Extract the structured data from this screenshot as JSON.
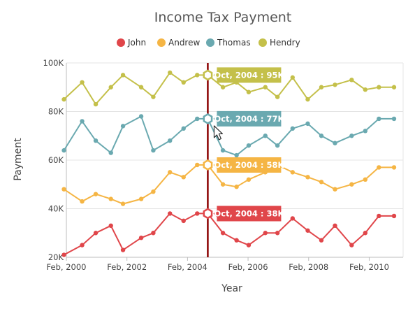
{
  "chart_data": {
    "type": "line",
    "title": "Income Tax Payment",
    "xlabel": "Year",
    "ylabel": "Payment",
    "ylim": [
      20,
      100
    ],
    "y_ticks": [
      "20K",
      "40K",
      "60K",
      "80K",
      "100K"
    ],
    "y_tick_values": [
      20,
      40,
      60,
      80,
      100
    ],
    "x_ticks": [
      "Feb, 2000",
      "Feb, 2002",
      "Feb, 2004",
      "Feb, 2006",
      "Feb, 2008",
      "Feb, 2010"
    ],
    "x_tick_values": [
      2000.08,
      2002.08,
      2004.08,
      2006.08,
      2008.08,
      2010.08
    ],
    "xlim": [
      2000.08,
      2011.2
    ],
    "grid": "horizontal",
    "legend_position": "top",
    "series": [
      {
        "name": "John",
        "color": "#e0464a",
        "x": [
          2000.0,
          2000.6,
          2001.05,
          2001.55,
          2001.95,
          2002.55,
          2002.95,
          2003.5,
          2003.95,
          2004.4,
          2004.75,
          2005.25,
          2005.7,
          2006.1,
          2006.65,
          2007.05,
          2007.55,
          2008.05,
          2008.5,
          2008.95,
          2009.5,
          2009.95,
          2010.4,
          2010.9
        ],
        "values": [
          21,
          25,
          30,
          33,
          23,
          28,
          30,
          38,
          35,
          38,
          38,
          30,
          27,
          25,
          30,
          30,
          36,
          31,
          27,
          33,
          25,
          30,
          37,
          37
        ],
        "skip_marker": [
          false,
          false,
          false,
          false,
          false,
          false,
          false,
          false,
          false,
          false,
          true,
          false,
          false,
          false,
          false,
          false,
          false,
          false,
          false,
          false,
          false,
          false,
          false,
          false
        ]
      },
      {
        "name": "Andrew",
        "color": "#f5b544",
        "x": [
          2000.0,
          2000.6,
          2001.05,
          2001.55,
          2001.95,
          2002.55,
          2002.95,
          2003.5,
          2003.95,
          2004.4,
          2004.75,
          2005.25,
          2005.7,
          2006.1,
          2006.65,
          2007.05,
          2007.55,
          2008.05,
          2008.5,
          2008.95,
          2009.5,
          2009.95,
          2010.4,
          2010.9
        ],
        "values": [
          48,
          43,
          46,
          44,
          42,
          44,
          47,
          55,
          53,
          58,
          58,
          50,
          49,
          52,
          55,
          58,
          55,
          53,
          51,
          48,
          50,
          52,
          57,
          57
        ],
        "skip_marker": [
          false,
          false,
          false,
          false,
          false,
          false,
          false,
          false,
          false,
          false,
          true,
          false,
          false,
          false,
          false,
          false,
          false,
          false,
          false,
          false,
          false,
          false,
          false,
          false
        ]
      },
      {
        "name": "Thomas",
        "color": "#6aa9b0",
        "x": [
          2000.0,
          2000.6,
          2001.05,
          2001.55,
          2001.95,
          2002.55,
          2002.95,
          2003.5,
          2003.95,
          2004.4,
          2004.75,
          2005.25,
          2005.7,
          2006.1,
          2006.65,
          2007.05,
          2007.55,
          2008.05,
          2008.5,
          2008.95,
          2009.5,
          2009.95,
          2010.4,
          2010.9
        ],
        "values": [
          64,
          76,
          68,
          63,
          74,
          78,
          64,
          68,
          73,
          77,
          77,
          64,
          62,
          66,
          70,
          66,
          73,
          75,
          70,
          67,
          70,
          72,
          77,
          77
        ],
        "skip_marker": [
          false,
          false,
          false,
          false,
          false,
          false,
          false,
          false,
          false,
          false,
          true,
          false,
          false,
          false,
          false,
          false,
          false,
          false,
          false,
          false,
          false,
          false,
          false,
          false
        ]
      },
      {
        "name": "Hendry",
        "color": "#c4c04a",
        "x": [
          2000.0,
          2000.6,
          2001.05,
          2001.55,
          2001.95,
          2002.55,
          2002.95,
          2003.5,
          2003.95,
          2004.4,
          2004.75,
          2005.25,
          2005.7,
          2006.1,
          2006.65,
          2007.05,
          2007.55,
          2008.05,
          2008.5,
          2008.95,
          2009.5,
          2009.95,
          2010.4,
          2010.9
        ],
        "values": [
          85,
          92,
          83,
          90,
          95,
          90,
          86,
          96,
          92,
          95,
          95,
          90,
          92,
          88,
          90,
          86,
          94,
          85,
          90,
          91,
          93,
          89,
          90,
          90
        ],
        "skip_marker": [
          false,
          false,
          false,
          false,
          false,
          false,
          false,
          false,
          false,
          false,
          true,
          false,
          false,
          false,
          false,
          false,
          false,
          false,
          false,
          false,
          false,
          false,
          false,
          false
        ]
      }
    ],
    "crosshair": {
      "x": 2004.75,
      "color": "#8b0000",
      "tooltips": [
        {
          "series": "Hendry",
          "label": "Oct, 2004 : 95K",
          "value": 95
        },
        {
          "series": "Thomas",
          "label": "Oct, 2004 : 77K",
          "value": 77
        },
        {
          "series": "Andrew",
          "label": "Oct, 2004 : 58K",
          "value": 58
        },
        {
          "series": "John",
          "label": "Oct, 2004 : 38K",
          "value": 38
        }
      ]
    }
  }
}
